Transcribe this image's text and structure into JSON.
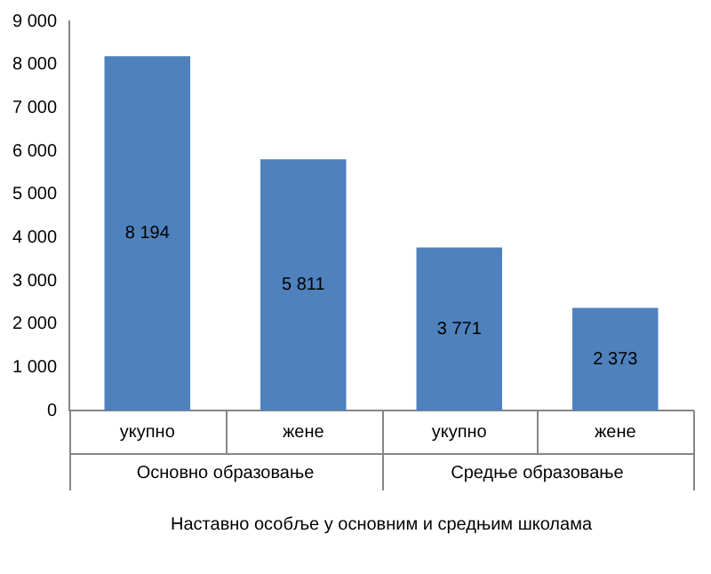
{
  "chart_data": {
    "type": "bar",
    "categories": [
      "укупно",
      "жене",
      "укупно",
      "жене"
    ],
    "values": [
      8194,
      5811,
      3771,
      2373
    ],
    "color": "#4f81bd",
    "value_labels": [
      "8 194",
      "5 811",
      "3 771",
      "2 373"
    ],
    "ylim": [
      0,
      9000
    ],
    "yticks": [
      0,
      {
        "value": 1000,
        "label": "1 000"
      },
      {
        "value": 2000,
        "label": "2 000"
      },
      {
        "value": 3000,
        "label": "3 000"
      },
      {
        "value": 4000,
        "label": "4 000"
      },
      {
        "value": 5000,
        "label": "5 000"
      },
      {
        "value": 6000,
        "label": "6 000"
      },
      {
        "value": 7000,
        "label": "7 000"
      },
      {
        "value": 8000,
        "label": "8 000"
      },
      {
        "value": 9000,
        "label": "9 000"
      }
    ],
    "grid": false,
    "legend": false,
    "annotations": [
      "Основно образовање",
      "Средње образовање",
      "Наставно особље у основним и средњим школама"
    ]
  }
}
